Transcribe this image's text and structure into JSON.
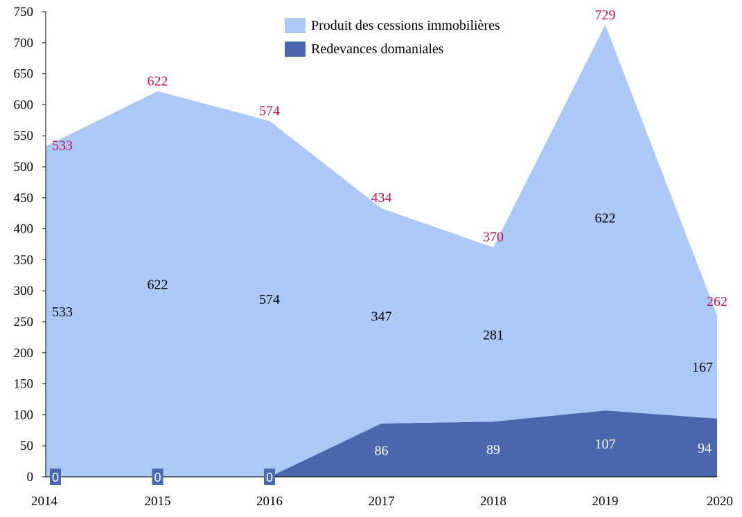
{
  "chart_data": {
    "type": "area",
    "stacked": true,
    "categories": [
      "2014",
      "2015",
      "2016",
      "2017",
      "2018",
      "2019",
      "2020"
    ],
    "series": [
      {
        "name": "Redevances domaniales",
        "values": [
          0,
          0,
          0,
          86,
          89,
          107,
          94
        ],
        "color": "#4a67ad"
      },
      {
        "name": "Produit des cessions immobilières",
        "values": [
          533,
          622,
          574,
          347,
          281,
          622,
          167
        ],
        "color": "#abc8f7"
      }
    ],
    "totals": [
      533,
      622,
      574,
      434,
      370,
      729,
      262
    ],
    "total_label_color": "#c0134a",
    "ylim": [
      0,
      750
    ],
    "yticks": [
      0,
      50,
      100,
      150,
      200,
      250,
      300,
      350,
      400,
      450,
      500,
      550,
      600,
      650,
      700,
      750
    ],
    "grid": false,
    "legend_position": "top-center"
  }
}
